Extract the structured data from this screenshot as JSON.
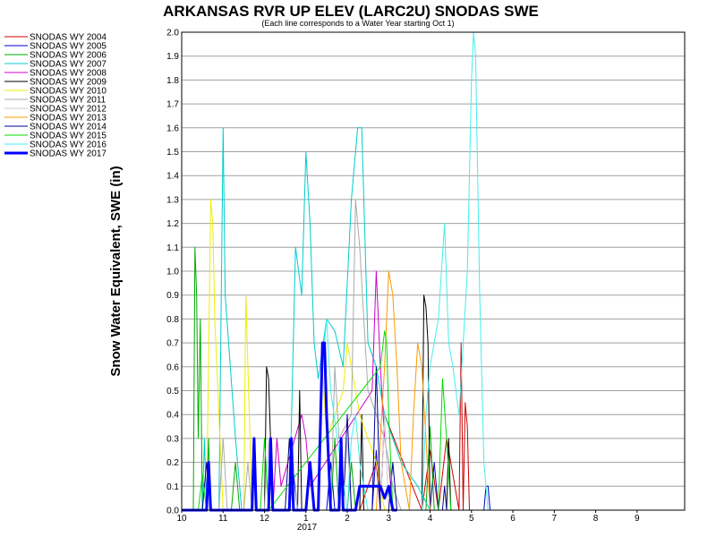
{
  "chart_data": {
    "type": "line",
    "title": "ARKANSAS RVR UP ELEV (LARC2U) SNODAS SWE",
    "subtitle": "(Each line corresponds to a Water Year starting Oct 1)",
    "ylabel": "Snow Water Equivalent, SWE (in)",
    "xlabel": "",
    "year_label": "2017",
    "ylim": [
      0,
      2.0
    ],
    "xlim": [
      10,
      22.15
    ],
    "grid": true,
    "legend_placement": "left",
    "y_ticks": [
      "0.0",
      "0.1",
      "0.2",
      "0.3",
      "0.4",
      "0.5",
      "0.6",
      "0.7",
      "0.8",
      "0.9",
      "1.0",
      "1.1",
      "1.2",
      "1.3",
      "1.4",
      "1.5",
      "1.6",
      "1.7",
      "1.8",
      "1.9",
      "2.0"
    ],
    "x_ticks": [
      {
        "value": 10,
        "label": "10"
      },
      {
        "value": 11,
        "label": "11"
      },
      {
        "value": 12,
        "label": "12"
      },
      {
        "value": 13,
        "label": "1"
      },
      {
        "value": 14,
        "label": "2"
      },
      {
        "value": 15,
        "label": "3"
      },
      {
        "value": 16,
        "label": "4"
      },
      {
        "value": 17,
        "label": "5"
      },
      {
        "value": 18,
        "label": "6"
      },
      {
        "value": 19,
        "label": "7"
      },
      {
        "value": 20,
        "label": "8"
      },
      {
        "value": 21,
        "label": "9"
      }
    ],
    "series": [
      {
        "name": "SNODAS WY 2004",
        "color": "#cc0000",
        "width": 1,
        "x": [
          10.0,
          14.3,
          14.7,
          14.8,
          14.9,
          15.8,
          16.0,
          16.2,
          16.4,
          16.7,
          16.75,
          16.8,
          16.85,
          16.9,
          16.95,
          17.0
        ],
        "y": [
          0,
          0,
          0.2,
          0,
          0.4,
          0,
          0.25,
          0,
          0.3,
          0,
          0.7,
          0,
          0.45,
          0.35,
          0,
          0
        ]
      },
      {
        "name": "SNODAS WY 2005",
        "color": "#0000cc",
        "width": 1,
        "x": [
          10.0,
          12.6,
          12.7,
          12.8,
          13.5,
          13.6,
          13.7,
          14.6,
          14.7,
          14.8,
          16.0,
          16.1,
          16.2,
          17.3,
          17.35,
          17.4,
          17.45
        ],
        "y": [
          0,
          0,
          0.15,
          0,
          0,
          0.2,
          0,
          0,
          0.25,
          0,
          0,
          0.2,
          0,
          0,
          0.1,
          0.1,
          0
        ]
      },
      {
        "name": "SNODAS WY 2006",
        "color": "#00aa00",
        "width": 1,
        "x": [
          10.0,
          10.28,
          10.32,
          10.36,
          10.4,
          10.45,
          10.5,
          10.6,
          10.65,
          10.7,
          11.2,
          11.3,
          11.4,
          13.6,
          13.7,
          13.8,
          14.0,
          14.1,
          14.2,
          15.9,
          16.0,
          16.1
        ],
        "y": [
          0,
          0,
          1.1,
          0.9,
          0.3,
          0.8,
          0,
          0,
          0.3,
          0,
          0,
          0.2,
          0,
          0,
          0.3,
          0,
          0,
          0.2,
          0,
          0,
          0.35,
          0
        ]
      },
      {
        "name": "SNODAS WY 2007",
        "color": "#00cccc",
        "width": 1,
        "x": [
          10.0,
          10.5,
          10.55,
          10.6,
          10.9,
          11.0,
          11.05,
          11.3,
          11.35,
          11.45,
          12.6,
          12.75,
          12.9,
          13.0,
          13.1,
          13.2,
          13.3,
          13.5,
          13.7,
          13.9,
          14.1,
          14.25,
          14.35,
          14.5,
          14.7,
          14.9,
          15.1,
          15.3,
          15.5,
          15.7,
          15.85,
          16.0
        ],
        "y": [
          0,
          0,
          0.3,
          0,
          0,
          1.6,
          0.9,
          0.3,
          0.2,
          0,
          0,
          1.1,
          0.9,
          1.5,
          1.2,
          0.7,
          0.55,
          0.8,
          0.75,
          0.6,
          1.3,
          1.6,
          1.6,
          0.7,
          0.6,
          0.4,
          0.3,
          0.2,
          0.15,
          0.1,
          0.05,
          0
        ]
      },
      {
        "name": "SNODAS WY 2008",
        "color": "#cc00cc",
        "width": 1,
        "x": [
          10.0,
          12.2,
          12.3,
          12.4,
          12.9,
          13.0,
          13.1,
          14.6,
          14.7,
          14.8,
          14.9,
          15.0,
          15.1
        ],
        "y": [
          0,
          0,
          0.3,
          0.1,
          0.4,
          0.3,
          0.1,
          0.5,
          1.0,
          0.6,
          0.3,
          0.2,
          0
        ]
      },
      {
        "name": "SNODAS WY 2009",
        "color": "#000000",
        "width": 1,
        "x": [
          10.0,
          12.0,
          12.05,
          12.1,
          12.2,
          12.8,
          12.85,
          12.9,
          14.3,
          14.35,
          14.4,
          15.8,
          15.85,
          15.9,
          15.95,
          16.0,
          16.4,
          16.45,
          16.5
        ],
        "y": [
          0,
          0,
          0.6,
          0.55,
          0,
          0,
          0.5,
          0,
          0,
          0.4,
          0,
          0,
          0.9,
          0.85,
          0.7,
          0,
          0,
          0.3,
          0
        ]
      },
      {
        "name": "SNODAS WY 2010",
        "color": "#eeee00",
        "width": 1,
        "x": [
          10.0,
          10.6,
          10.7,
          10.75,
          10.8,
          10.9,
          11.0,
          11.5,
          11.55,
          11.6,
          11.7,
          12.5,
          12.6,
          12.7,
          13.3,
          13.4,
          13.5,
          13.9,
          14.0,
          14.1,
          14.2,
          14.3,
          14.5,
          14.7,
          14.9
        ],
        "y": [
          0,
          0,
          1.3,
          1.2,
          0.8,
          0.4,
          0,
          0,
          0.9,
          0.6,
          0,
          0,
          0.3,
          0,
          0,
          0.6,
          0.3,
          0.5,
          0.7,
          0.6,
          0.5,
          0.4,
          0.3,
          0.2,
          0
        ]
      },
      {
        "name": "SNODAS WY 2011",
        "color": "#aaaaaa",
        "width": 1,
        "x": [
          10.0,
          10.9,
          11.0,
          11.1,
          11.5,
          11.6,
          11.7,
          13.6,
          13.7,
          13.8,
          14.1,
          14.2,
          14.3,
          14.4,
          14.5,
          14.7,
          14.9,
          15.1,
          15.3
        ],
        "y": [
          0,
          0,
          0.3,
          0,
          0,
          0.2,
          0,
          0,
          0.6,
          0.3,
          0.4,
          1.3,
          1.1,
          0.8,
          0.5,
          0.4,
          0.3,
          0.1,
          0
        ]
      },
      {
        "name": "SNODAS WY 2012",
        "color": "#cccccc",
        "width": 1,
        "x": [
          10.0,
          12.0,
          12.1,
          12.2,
          12.6,
          12.7,
          12.8,
          13.9,
          14.0,
          14.1,
          14.8,
          14.9,
          15.0
        ],
        "y": [
          0,
          0,
          0.3,
          0,
          0,
          0.2,
          0,
          0,
          0.3,
          0,
          0,
          0.4,
          0
        ]
      },
      {
        "name": "SNODAS WY 2013",
        "color": "#ff9900",
        "width": 1,
        "x": [
          10.0,
          14.7,
          14.8,
          14.9,
          15.0,
          15.1,
          15.2,
          15.3,
          15.5,
          15.6,
          15.7,
          15.8,
          15.9,
          16.0
        ],
        "y": [
          0,
          0,
          0.3,
          0.6,
          1.0,
          0.9,
          0.6,
          0.2,
          0,
          0.4,
          0.7,
          0.6,
          0.3,
          0
        ]
      },
      {
        "name": "SNODAS WY 2014",
        "color": "#000099",
        "width": 1,
        "x": [
          10.0,
          10.5,
          10.6,
          10.7,
          12.5,
          12.6,
          12.7,
          13.9,
          14.0,
          14.1,
          14.6,
          14.7,
          14.8,
          15.0,
          15.1,
          15.2,
          16.3,
          16.35,
          16.4
        ],
        "y": [
          0,
          0,
          0.2,
          0,
          0,
          0.3,
          0,
          0,
          0.4,
          0,
          0,
          0.6,
          0,
          0,
          0.2,
          0,
          0,
          0.1,
          0
        ]
      },
      {
        "name": "SNODAS WY 2015",
        "color": "#00dd00",
        "width": 1,
        "x": [
          10.0,
          10.4,
          10.5,
          10.6,
          11.9,
          12.0,
          12.1,
          14.8,
          14.9,
          14.95,
          15.0,
          15.1,
          16.2,
          16.3,
          16.4,
          16.5
        ],
        "y": [
          0,
          0,
          0.15,
          0,
          0,
          0.3,
          0,
          0.6,
          0.75,
          0.7,
          0.4,
          0,
          0,
          0.55,
          0.3,
          0
        ]
      },
      {
        "name": "SNODAS WY 2016",
        "color": "#44eeee",
        "width": 1,
        "x": [
          10.0,
          13.3,
          13.4,
          13.5,
          13.6,
          14.0,
          14.1,
          14.2,
          14.3,
          14.5,
          15.8,
          15.9,
          16.0,
          16.2,
          16.35,
          16.45,
          16.55,
          16.7,
          16.9,
          17.0,
          17.05,
          17.1,
          17.2,
          17.3,
          17.4
        ],
        "y": [
          0,
          0,
          0.6,
          0.8,
          0.5,
          0,
          0.3,
          0.4,
          0.2,
          0,
          0,
          0.4,
          0.6,
          0.8,
          1.2,
          0.7,
          0.6,
          0.4,
          1.0,
          1.8,
          2.0,
          1.9,
          0.9,
          0.2,
          0
        ]
      },
      {
        "name": "SNODAS WY 2017",
        "color": "#0000ff",
        "width": 3,
        "x": [
          10.0,
          10.6,
          10.65,
          10.7,
          11.7,
          11.75,
          11.8,
          12.1,
          12.15,
          12.2,
          12.6,
          12.65,
          12.7,
          13.0,
          13.1,
          13.2,
          13.3,
          13.4,
          13.45,
          13.5,
          13.55,
          13.6,
          13.8,
          13.85,
          13.9,
          14.2,
          14.3,
          14.4,
          14.5,
          14.7,
          14.8,
          14.9,
          15.0,
          15.1,
          15.2
        ],
        "y": [
          0,
          0,
          0.2,
          0,
          0,
          0.3,
          0,
          0,
          0.3,
          0,
          0,
          0.3,
          0,
          0,
          0.2,
          0,
          0,
          0.7,
          0.7,
          0.4,
          0.2,
          0,
          0,
          0.3,
          0,
          0,
          0.1,
          0.1,
          0.1,
          0.1,
          0.1,
          0.05,
          0.1,
          0,
          0
        ]
      }
    ]
  }
}
